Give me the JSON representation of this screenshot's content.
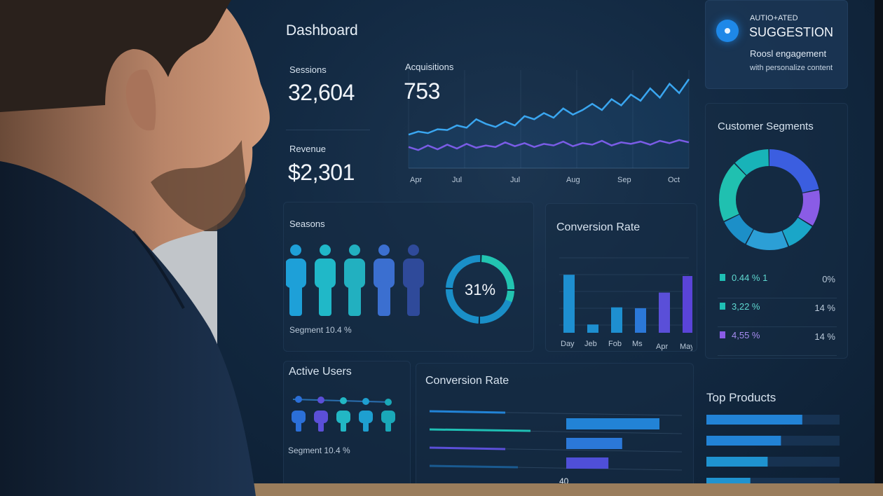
{
  "dashboard": {
    "title": "Dashboard"
  },
  "suggestion": {
    "eyebrow": "AUTIO+ATED",
    "title": "SUGGESTION",
    "line1": "Roosl engagement",
    "line2": "with personalize content"
  },
  "kpis": {
    "sessions_label": "Sessions",
    "sessions_value": "32,604",
    "revenue_label": "Revenue",
    "revenue_value": "$2,301"
  },
  "acquisitions": {
    "label": "Acquisitions",
    "value": "753",
    "x_ticks": [
      "Apr",
      "Jul",
      "Jul",
      "Aug",
      "Sep",
      "Oct"
    ],
    "series": [
      {
        "color": "#3aa6f0",
        "values": [
          38,
          42,
          40,
          45,
          44,
          50,
          47,
          58,
          52,
          48,
          55,
          50,
          62,
          58,
          66,
          60,
          72,
          64,
          70,
          78,
          70,
          84,
          76,
          90,
          82,
          98,
          86,
          104,
          92,
          110
        ]
      },
      {
        "color": "#7a5ce6",
        "values": [
          22,
          18,
          24,
          19,
          25,
          20,
          26,
          21,
          24,
          22,
          28,
          23,
          27,
          22,
          26,
          24,
          29,
          23,
          27,
          25,
          30,
          24,
          28,
          26,
          29,
          25,
          30,
          27,
          31,
          28
        ]
      }
    ]
  },
  "customer_segments": {
    "title": "Customer Segments",
    "slices": [
      {
        "value": 22,
        "color": "#3b5ee0"
      },
      {
        "value": 12,
        "color": "#8a5ce6"
      },
      {
        "value": 10,
        "color": "#1aa6c8"
      },
      {
        "value": 14,
        "color": "#2c9fd6"
      },
      {
        "value": 10,
        "color": "#1c8fc8"
      },
      {
        "value": 20,
        "color": "#20c0b0"
      },
      {
        "value": 12,
        "color": "#18b3b8"
      }
    ],
    "legend": [
      {
        "label": "0.44 % 1",
        "value": "0%",
        "color": "#1fbfb4"
      },
      {
        "label": "3,22 %",
        "value": "14 %",
        "color": "#1fbfb4"
      },
      {
        "label": "4,55 %",
        "value": "14 %",
        "color": "#8a5ce6"
      }
    ]
  },
  "seasons": {
    "label": "Seasons",
    "segment_text": "Segment  10.4 %",
    "donut_value": "31%",
    "donut_fraction": 0.31,
    "people_colors": [
      "#1ea0d8",
      "#20b8c8",
      "#22b0c0",
      "#3b6fd0",
      "#2f4a9a"
    ]
  },
  "conversion_top": {
    "title": "Conversion Rate",
    "categories": [
      "Day",
      "Jeb",
      "Fob",
      "Ms",
      "Apr",
      "May"
    ],
    "values": [
      80,
      30,
      52,
      52,
      68,
      80
    ],
    "colors": [
      "#1e8fd0",
      "#1e8fd0",
      "#1e8fd0",
      "#2b78d8",
      "#5a4fd8",
      "#5a44d8"
    ]
  },
  "active_users": {
    "title": "Active Users",
    "segment_text": "Segment 10.4 %",
    "user_colors": [
      "#2b6fd8",
      "#5b4fd8",
      "#22b7c4",
      "#1e9fd0",
      "#1aa8b8"
    ]
  },
  "conversion_bottom": {
    "title": "Conversion Rate",
    "left_lines": [
      0.6,
      0.8,
      0.6,
      0.7
    ],
    "right_bars": [
      0.95,
      0.57,
      0.43
    ],
    "right_colors": [
      "#2283d6",
      "#2b78d8",
      "#4f4fd8"
    ],
    "axis_label": "40"
  },
  "top_products": {
    "title": "Top Products",
    "bars": [
      0.72,
      0.56,
      0.46,
      0.33
    ],
    "colors": [
      "#2283d6",
      "#2283d6",
      "#1f93d0",
      "#1f93d0"
    ]
  }
}
